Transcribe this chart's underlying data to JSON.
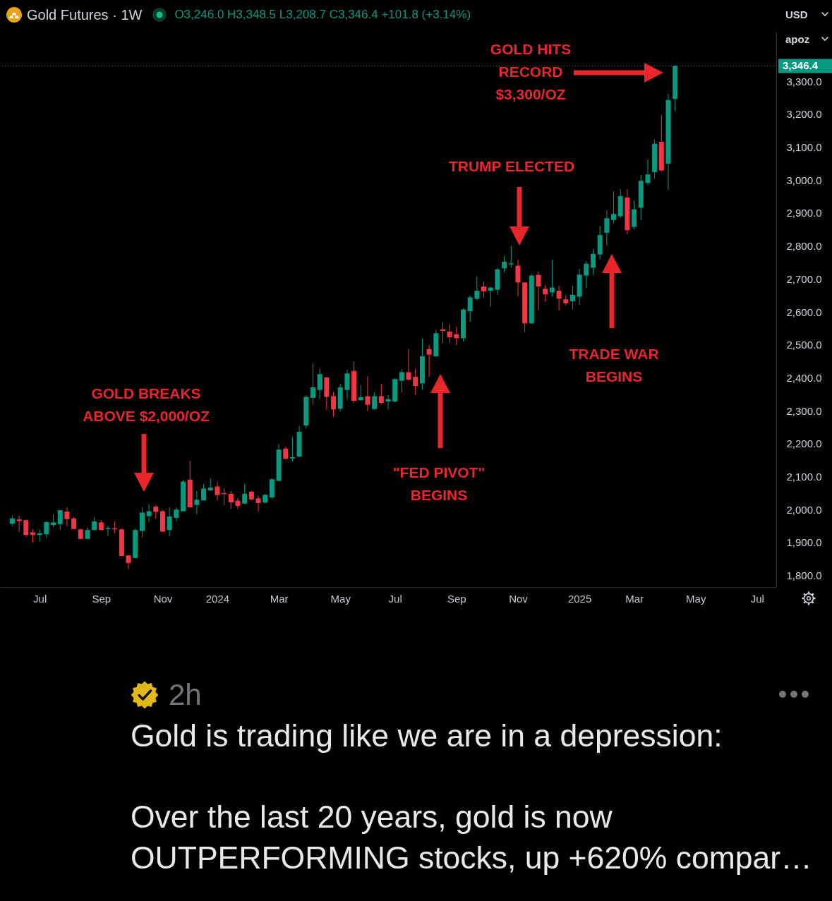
{
  "chart_data": {
    "type": "candlestick",
    "title": "Gold Futures · 1W",
    "subtitle": "O3,246.0 H3,348.5 L3,208.7 C3,346.4 +101.8 (+3.14%)",
    "x": [
      "2023-06-05",
      "2023-06-12",
      "2023-06-19",
      "2023-06-26",
      "2023-07-03",
      "2023-07-10",
      "2023-07-17",
      "2023-07-24",
      "2023-07-31",
      "2023-08-07",
      "2023-08-14",
      "2023-08-21",
      "2023-08-28",
      "2023-09-04",
      "2023-09-11",
      "2023-09-18",
      "2023-09-25",
      "2023-10-02",
      "2023-10-09",
      "2023-10-16",
      "2023-10-23",
      "2023-10-30",
      "2023-11-06",
      "2023-11-13",
      "2023-11-20",
      "2023-11-27",
      "2023-12-04",
      "2023-12-11",
      "2023-12-18",
      "2023-12-25",
      "2024-01-01",
      "2024-01-08",
      "2024-01-15",
      "2024-01-22",
      "2024-01-29",
      "2024-02-05",
      "2024-02-12",
      "2024-02-19",
      "2024-02-26",
      "2024-03-04",
      "2024-03-11",
      "2024-03-18",
      "2024-03-25",
      "2024-04-01",
      "2024-04-08",
      "2024-04-15",
      "2024-04-22",
      "2024-04-29",
      "2024-05-06",
      "2024-05-13",
      "2024-05-20",
      "2024-05-27",
      "2024-06-03",
      "2024-06-10",
      "2024-06-17",
      "2024-06-24",
      "2024-07-01",
      "2024-07-08",
      "2024-07-15",
      "2024-07-22",
      "2024-07-29",
      "2024-08-05",
      "2024-08-12",
      "2024-08-19",
      "2024-08-26",
      "2024-09-02",
      "2024-09-09",
      "2024-09-16",
      "2024-09-23",
      "2024-09-30",
      "2024-10-07",
      "2024-10-14",
      "2024-10-21",
      "2024-10-28",
      "2024-11-04",
      "2024-11-11",
      "2024-11-18",
      "2024-11-25",
      "2024-12-02",
      "2024-12-09",
      "2024-12-16",
      "2024-12-23",
      "2024-12-30",
      "2025-01-06",
      "2025-01-13",
      "2025-01-20",
      "2025-01-27",
      "2025-02-03",
      "2025-02-10",
      "2025-02-17",
      "2025-02-24",
      "2025-03-03",
      "2025-03-10",
      "2025-03-17",
      "2025-03-24",
      "2025-03-31",
      "2025-04-07",
      "2025-04-14"
    ],
    "ohlc": [
      [
        1957,
        1982,
        1950,
        1973
      ],
      [
        1970,
        1982,
        1932,
        1965
      ],
      [
        1968,
        1969,
        1917,
        1923
      ],
      [
        1931,
        1940,
        1900,
        1923
      ],
      [
        1923,
        1940,
        1904,
        1928
      ],
      [
        1925,
        1964,
        1914,
        1962
      ],
      [
        1953,
        1985,
        1947,
        1961
      ],
      [
        1956,
        1999,
        1938,
        1998
      ],
      [
        1994,
        2007,
        1950,
        1971
      ],
      [
        1973,
        1977,
        1940,
        1941
      ],
      [
        1940,
        1943,
        1910,
        1911
      ],
      [
        1911,
        1946,
        1910,
        1938
      ],
      [
        1938,
        1977,
        1937,
        1964
      ],
      [
        1961,
        1968,
        1937,
        1938
      ],
      [
        1941,
        1950,
        1920,
        1944
      ],
      [
        1943,
        1964,
        1928,
        1940
      ],
      [
        1940,
        1943,
        1858,
        1859
      ],
      [
        1861,
        1862,
        1820,
        1838
      ],
      [
        1853,
        1943,
        1852,
        1938
      ],
      [
        1935,
        2007,
        1916,
        1991
      ],
      [
        1980,
        2016,
        1961,
        1995
      ],
      [
        2009,
        2014,
        1973,
        1993
      ],
      [
        1995,
        1998,
        1932,
        1933
      ],
      [
        1938,
        2007,
        1918,
        1979
      ],
      [
        1975,
        2007,
        1964,
        2000
      ],
      [
        1995,
        2091,
        1994,
        2085
      ],
      [
        2091,
        2148,
        2006,
        2007
      ],
      [
        2014,
        2057,
        1986,
        2030
      ],
      [
        2028,
        2078,
        2027,
        2064
      ],
      [
        2058,
        2095,
        2057,
        2067
      ],
      [
        2070,
        2085,
        2028,
        2044
      ],
      [
        2050,
        2064,
        2014,
        2047
      ],
      [
        2048,
        2057,
        2002,
        2022
      ],
      [
        2027,
        2035,
        2002,
        2011
      ],
      [
        2018,
        2078,
        2017,
        2048
      ],
      [
        2054,
        2057,
        2028,
        2031
      ],
      [
        2034,
        2043,
        1993,
        2020
      ],
      [
        2021,
        2048,
        2019,
        2045
      ],
      [
        2037,
        2095,
        2032,
        2092
      ],
      [
        2087,
        2199,
        2086,
        2182
      ],
      [
        2185,
        2191,
        2152,
        2154
      ],
      [
        2155,
        2221,
        2146,
        2159
      ],
      [
        2161,
        2255,
        2158,
        2236
      ],
      [
        2255,
        2348,
        2246,
        2342
      ],
      [
        2339,
        2444,
        2318,
        2371
      ],
      [
        2363,
        2428,
        2336,
        2411
      ],
      [
        2401,
        2402,
        2303,
        2342
      ],
      [
        2344,
        2357,
        2282,
        2304
      ],
      [
        2306,
        2381,
        2298,
        2371
      ],
      [
        2363,
        2424,
        2336,
        2413
      ],
      [
        2421,
        2450,
        2324,
        2330
      ],
      [
        2332,
        2378,
        2330,
        2341
      ],
      [
        2344,
        2405,
        2299,
        2318
      ],
      [
        2305,
        2356,
        2303,
        2344
      ],
      [
        2344,
        2381,
        2319,
        2324
      ],
      [
        2328,
        2348,
        2303,
        2335
      ],
      [
        2328,
        2399,
        2325,
        2396
      ],
      [
        2391,
        2426,
        2355,
        2417
      ],
      [
        2417,
        2487,
        2393,
        2394
      ],
      [
        2403,
        2428,
        2348,
        2375
      ],
      [
        2383,
        2520,
        2363,
        2465
      ],
      [
        2487,
        2499,
        2403,
        2470
      ],
      [
        2465,
        2546,
        2464,
        2535
      ],
      [
        2547,
        2569,
        2505,
        2542
      ],
      [
        2540,
        2562,
        2505,
        2523
      ],
      [
        2532,
        2556,
        2499,
        2520
      ],
      [
        2520,
        2610,
        2510,
        2607
      ],
      [
        2602,
        2649,
        2570,
        2644
      ],
      [
        2640,
        2708,
        2634,
        2664
      ],
      [
        2677,
        2692,
        2643,
        2662
      ],
      [
        2664,
        2676,
        2615,
        2674
      ],
      [
        2667,
        2734,
        2652,
        2729
      ],
      [
        2732,
        2770,
        2719,
        2752
      ],
      [
        2744,
        2801,
        2734,
        2747
      ],
      [
        2740,
        2758,
        2647,
        2689
      ],
      [
        2689,
        2690,
        2539,
        2565
      ],
      [
        2565,
        2715,
        2564,
        2710
      ],
      [
        2712,
        2722,
        2605,
        2677
      ],
      [
        2670,
        2681,
        2631,
        2653
      ],
      [
        2659,
        2758,
        2646,
        2674
      ],
      [
        2664,
        2679,
        2605,
        2640
      ],
      [
        2638,
        2651,
        2619,
        2626
      ],
      [
        2632,
        2679,
        2608,
        2652
      ],
      [
        2646,
        2731,
        2622,
        2713
      ],
      [
        2710,
        2753,
        2672,
        2746
      ],
      [
        2734,
        2790,
        2713,
        2776
      ],
      [
        2774,
        2860,
        2760,
        2833
      ],
      [
        2840,
        2908,
        2801,
        2884
      ],
      [
        2879,
        2966,
        2868,
        2897
      ],
      [
        2890,
        2972,
        2884,
        2951
      ],
      [
        2947,
        2972,
        2835,
        2848
      ],
      [
        2858,
        2938,
        2850,
        2911
      ],
      [
        2916,
        3015,
        2879,
        2998
      ],
      [
        2991,
        3062,
        2985,
        3017
      ],
      [
        3024,
        3124,
        3004,
        3110
      ],
      [
        3116,
        3198,
        3025,
        3029
      ],
      [
        3050,
        3262,
        2970,
        3243
      ],
      [
        3246,
        3348.5,
        3208.7,
        3346.4
      ]
    ],
    "colors": [
      "#089981",
      "#f23645",
      "#f23645",
      "#f23645",
      "#089981",
      "#089981",
      "#089981",
      "#089981",
      "#f23645",
      "#f23645",
      "#f23645",
      "#089981",
      "#089981",
      "#f23645",
      "#089981",
      "#f23645",
      "#f23645",
      "#f23645",
      "#089981",
      "#089981",
      "#089981",
      "#f23645",
      "#f23645",
      "#089981",
      "#089981",
      "#089981",
      "#f23645",
      "#089981",
      "#089981",
      "#089981",
      "#f23645",
      "#f23645",
      "#f23645",
      "#f23645",
      "#089981",
      "#f23645",
      "#f23645",
      "#089981",
      "#089981",
      "#089981",
      "#f23645",
      "#089981",
      "#089981",
      "#089981",
      "#089981",
      "#089981",
      "#f23645",
      "#f23645",
      "#089981",
      "#089981",
      "#f23645",
      "#089981",
      "#f23645",
      "#089981",
      "#f23645",
      "#089981",
      "#089981",
      "#089981",
      "#f23645",
      "#f23645",
      "#089981",
      "#f23645",
      "#089981",
      "#f23645",
      "#f23645",
      "#f23645",
      "#089981",
      "#089981",
      "#089981",
      "#f23645",
      "#089981",
      "#089981",
      "#089981",
      "#089981",
      "#f23645",
      "#f23645",
      "#089981",
      "#f23645",
      "#f23645",
      "#089981",
      "#f23645",
      "#f23645",
      "#089981",
      "#089981",
      "#089981",
      "#089981",
      "#089981",
      "#089981",
      "#089981",
      "#089981",
      "#f23645",
      "#089981",
      "#089981",
      "#089981",
      "#089981",
      "#f23645",
      "#089981",
      "#089981"
    ],
    "xlim": [
      "2023-05-27",
      "2025-07-23"
    ],
    "xticks": [
      {
        "value": "2023-07-03",
        "label": "Jul"
      },
      {
        "value": "2023-09-04",
        "label": "Sep"
      },
      {
        "value": "2023-11-06",
        "label": "Nov"
      },
      {
        "value": "2024-01-01",
        "label": "2024"
      },
      {
        "value": "2024-03-04",
        "label": "Mar"
      },
      {
        "value": "2024-05-06",
        "label": "May"
      },
      {
        "value": "2024-07-01",
        "label": "Jul"
      },
      {
        "value": "2024-09-02",
        "label": "Sep"
      },
      {
        "value": "2024-11-04",
        "label": "Nov"
      },
      {
        "value": "2025-01-06",
        "label": "2025"
      },
      {
        "value": "2025-03-03",
        "label": "Mar"
      },
      {
        "value": "2025-05-05",
        "label": "May"
      },
      {
        "value": "2025-07-07",
        "label": "Jul"
      }
    ],
    "ylim": [
      1765,
      3450
    ],
    "yticks": [
      {
        "value": 1800,
        "label": "1,800.0"
      },
      {
        "value": 1900,
        "label": "1,900.0"
      },
      {
        "value": 2000,
        "label": "2,000.0"
      },
      {
        "value": 2100,
        "label": "2,100.0"
      },
      {
        "value": 2200,
        "label": "2,200.0"
      },
      {
        "value": 2300,
        "label": "2,300.0"
      },
      {
        "value": 2400,
        "label": "2,400.0"
      },
      {
        "value": 2500,
        "label": "2,500.0"
      },
      {
        "value": 2600,
        "label": "2,600.0"
      },
      {
        "value": 2700,
        "label": "2,700.0"
      },
      {
        "value": 2800,
        "label": "2,800.0"
      },
      {
        "value": 2900,
        "label": "2,900.0"
      },
      {
        "value": 3000,
        "label": "3,000.0"
      },
      {
        "value": 3100,
        "label": "3,100.0"
      },
      {
        "value": 3200,
        "label": "3,200.0"
      },
      {
        "value": 3300,
        "label": "3,300.0"
      }
    ],
    "ref_lines": [
      {
        "axis": "y",
        "value": 3346.4,
        "label": "3,346.4",
        "color": "#089981",
        "line_style": "dotted"
      }
    ],
    "annotations": [
      "GOLD BREAKS\nABOVE $2,000/OZ",
      "\"FED PIVOT\"\nBEGINS",
      "TRUMP ELECTED",
      "TRADE WAR\nBEGINS",
      "GOLD HITS\nRECORD\n$3,300/OZ",
      "USD",
      "apoz",
      "2h",
      "Gold is trading like we are in a depression:",
      "Over the last 20 years, gold is now OUTPERFORMING stocks, up +620% compar…"
    ]
  }
}
